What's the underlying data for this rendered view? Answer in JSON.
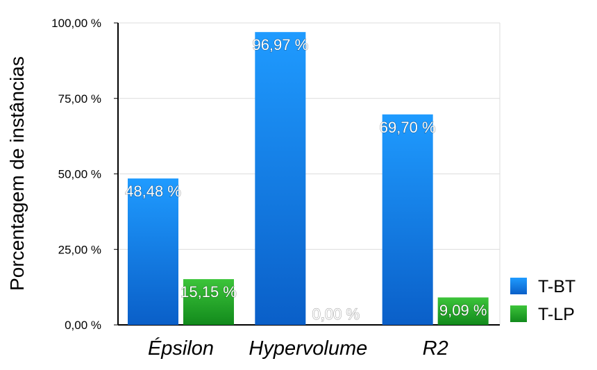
{
  "chart_data": {
    "type": "bar",
    "categories": [
      "Épsilon",
      "Hypervolume",
      "R2"
    ],
    "series": [
      {
        "name": "T-BT",
        "values": [
          48.48,
          96.97,
          69.7
        ],
        "labels": [
          "48,48 %",
          "96,97 %",
          "69,70 %"
        ],
        "color": "#1e8ff0"
      },
      {
        "name": "T-LP",
        "values": [
          15.15,
          0.0,
          9.09
        ],
        "labels": [
          "15,15 %",
          "0,00 %",
          "9,09 %"
        ],
        "color": "#22b02a"
      }
    ],
    "ylabel": "Porcentagem de instâncias",
    "xlabel": "",
    "ylim": [
      0,
      100
    ],
    "yticks": [
      0,
      25,
      50,
      75,
      100
    ],
    "ytick_labels": [
      "0,00 %",
      "25,00 %",
      "50,00 %",
      "75,00 %",
      "100,00 %"
    ],
    "grid": true,
    "legend_position": "right"
  }
}
